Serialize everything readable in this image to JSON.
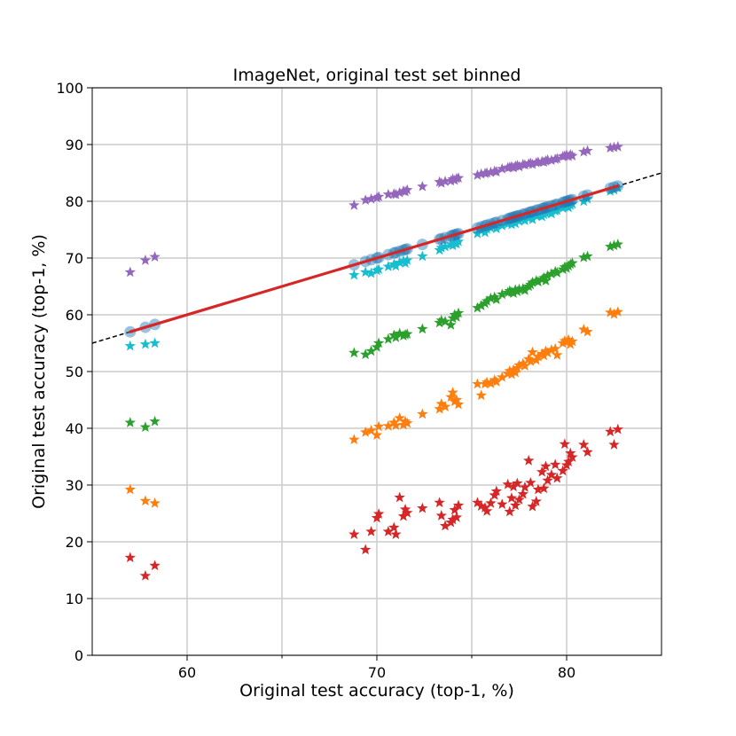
{
  "chart_data": {
    "type": "scatter",
    "title": "ImageNet, original test set binned",
    "xlabel": "Original test accuracy (top-1, %)",
    "ylabel": "Original test accuracy (top-1, %)",
    "xlim": [
      55,
      85
    ],
    "ylim": [
      0,
      100
    ],
    "x_major_ticks": [
      60,
      70,
      80
    ],
    "x_minor_ticks": [
      65,
      75
    ],
    "y_ticks": [
      0,
      10,
      20,
      30,
      40,
      50,
      60,
      70,
      80,
      90,
      100
    ],
    "grid": true,
    "legend": "none",
    "reference_line": {
      "style": "dashed",
      "color": "#000000",
      "points": [
        [
          55,
          55
        ],
        [
          85,
          85
        ]
      ]
    },
    "fit_line": {
      "style": "solid",
      "color": "#d62728",
      "points": [
        [
          57.0,
          57.0
        ],
        [
          82.7,
          82.7
        ]
      ]
    },
    "x": [
      57.0,
      57.8,
      58.3,
      68.8,
      69.4,
      69.7,
      70.0,
      70.1,
      70.6,
      70.9,
      71.0,
      71.2,
      71.4,
      71.5,
      71.6,
      72.4,
      73.3,
      73.4,
      73.6,
      73.9,
      74.0,
      74.1,
      74.2,
      74.3,
      75.3,
      75.5,
      75.7,
      75.8,
      76.0,
      76.2,
      76.3,
      76.6,
      76.9,
      77.0,
      77.1,
      77.2,
      77.3,
      77.4,
      77.5,
      77.7,
      77.8,
      78.0,
      78.1,
      78.2,
      78.4,
      78.5,
      78.7,
      78.8,
      78.9,
      79.0,
      79.2,
      79.4,
      79.5,
      79.8,
      79.9,
      80.0,
      80.1,
      80.2,
      80.3,
      80.9,
      81.1,
      82.3,
      82.5,
      82.7
    ],
    "series": [
      {
        "name": "",
        "marker": "circle",
        "color": "#1f77b4",
        "y": [
          57.0,
          57.8,
          58.3,
          68.8,
          69.4,
          69.7,
          70.0,
          70.1,
          70.6,
          70.9,
          71.0,
          71.2,
          71.4,
          71.5,
          71.6,
          72.4,
          73.3,
          73.4,
          73.6,
          73.9,
          74.0,
          74.1,
          74.2,
          74.3,
          75.3,
          75.5,
          75.7,
          75.8,
          76.0,
          76.2,
          76.3,
          76.6,
          76.9,
          77.0,
          77.1,
          77.2,
          77.3,
          77.4,
          77.5,
          77.7,
          77.8,
          78.0,
          78.1,
          78.2,
          78.4,
          78.5,
          78.7,
          78.8,
          78.9,
          79.0,
          79.2,
          79.4,
          79.5,
          79.8,
          79.9,
          80.0,
          80.1,
          80.2,
          80.3,
          80.9,
          81.1,
          82.3,
          82.5,
          82.7
        ]
      },
      {
        "name": "",
        "marker": "star",
        "color": "#9467bd",
        "y": [
          67.5,
          69.6,
          70.2,
          79.3,
          80.2,
          80.4,
          80.6,
          80.8,
          81.2,
          81.3,
          81.2,
          81.5,
          81.8,
          81.7,
          82.0,
          82.6,
          83.4,
          83.2,
          83.5,
          83.6,
          83.9,
          83.7,
          84.0,
          84.1,
          84.6,
          84.8,
          84.9,
          85.0,
          85.1,
          85.3,
          85.2,
          85.7,
          85.9,
          86.0,
          86.1,
          85.9,
          86.2,
          86.3,
          86.1,
          86.5,
          86.4,
          86.6,
          86.7,
          86.5,
          86.8,
          86.9,
          87.0,
          86.9,
          87.1,
          87.3,
          87.2,
          87.4,
          87.5,
          87.9,
          88.0,
          88.1,
          87.9,
          88.2,
          88.0,
          88.7,
          88.9,
          89.4,
          89.5,
          89.6
        ]
      },
      {
        "name": "",
        "marker": "star",
        "color": "#17becf",
        "y": [
          54.5,
          54.8,
          55.0,
          67.0,
          67.5,
          67.3,
          67.8,
          68.0,
          68.5,
          68.9,
          68.6,
          69.2,
          69.5,
          69.1,
          69.6,
          70.3,
          71.4,
          71.8,
          72.0,
          72.4,
          72.2,
          72.6,
          72.5,
          72.9,
          74.3,
          74.8,
          74.5,
          75.1,
          75.3,
          75.6,
          75.2,
          75.7,
          76.0,
          76.3,
          75.9,
          76.4,
          76.1,
          76.7,
          76.5,
          76.9,
          76.6,
          77.0,
          77.2,
          76.8,
          77.4,
          77.5,
          77.3,
          77.7,
          77.9,
          78.1,
          77.8,
          78.3,
          78.4,
          78.8,
          79.0,
          79.1,
          78.9,
          79.3,
          79.5,
          80.0,
          80.4,
          81.8,
          82.0,
          82.4
        ]
      },
      {
        "name": "",
        "marker": "star",
        "color": "#2ca02c",
        "y": [
          41.0,
          40.2,
          41.2,
          53.3,
          53.0,
          53.6,
          54.3,
          55.0,
          55.7,
          56.4,
          56.0,
          56.7,
          56.3,
          56.5,
          56.6,
          57.5,
          58.6,
          59.0,
          58.8,
          58.2,
          59.4,
          60.0,
          59.6,
          60.3,
          61.2,
          61.6,
          62.0,
          62.4,
          62.9,
          63.1,
          62.7,
          63.6,
          63.9,
          64.2,
          64.0,
          63.8,
          64.4,
          64.1,
          64.5,
          64.6,
          64.3,
          65.0,
          65.3,
          65.7,
          66.0,
          65.8,
          66.2,
          66.5,
          66.0,
          66.9,
          67.2,
          67.6,
          67.4,
          68.0,
          68.4,
          68.2,
          68.6,
          68.9,
          69.1,
          70.1,
          70.3,
          72.0,
          72.2,
          72.4
        ]
      },
      {
        "name": "",
        "marker": "star",
        "color": "#ff7f0e",
        "y": [
          29.2,
          27.2,
          26.8,
          38.0,
          39.3,
          39.6,
          38.8,
          40.3,
          40.4,
          41.0,
          40.5,
          41.8,
          40.6,
          41.2,
          40.9,
          42.5,
          43.4,
          44.3,
          43.8,
          45.5,
          46.3,
          44.7,
          45.0,
          44.2,
          47.8,
          45.8,
          47.8,
          48.1,
          47.9,
          48.5,
          48.2,
          49.0,
          49.6,
          50.1,
          49.5,
          50.3,
          49.8,
          50.6,
          51.1,
          51.4,
          51.0,
          52.2,
          51.8,
          53.4,
          52.0,
          52.6,
          53.1,
          52.8,
          53.6,
          53.3,
          53.8,
          54.0,
          52.9,
          55.0,
          55.4,
          55.2,
          55.6,
          54.8,
          55.3,
          57.4,
          57.0,
          60.4,
          60.1,
          60.5
        ]
      },
      {
        "name": "",
        "marker": "star",
        "color": "#d62728",
        "y": [
          17.2,
          14.0,
          15.8,
          21.3,
          18.6,
          21.8,
          24.2,
          24.9,
          21.8,
          22.5,
          21.3,
          27.8,
          24.5,
          25.7,
          25.1,
          25.9,
          26.9,
          24.6,
          22.8,
          23.4,
          23.9,
          25.6,
          24.3,
          26.4,
          26.9,
          26.3,
          26.0,
          25.4,
          26.8,
          28.2,
          28.9,
          26.6,
          30.1,
          25.3,
          27.7,
          29.7,
          26.4,
          30.3,
          27.4,
          28.4,
          29.6,
          34.3,
          30.4,
          26.2,
          27.1,
          29.2,
          32.3,
          29.4,
          33.3,
          30.8,
          31.8,
          33.6,
          31.2,
          32.5,
          37.2,
          33.5,
          34.1,
          35.6,
          34.9,
          37.1,
          35.8,
          39.4,
          37.1,
          39.8
        ]
      }
    ]
  }
}
